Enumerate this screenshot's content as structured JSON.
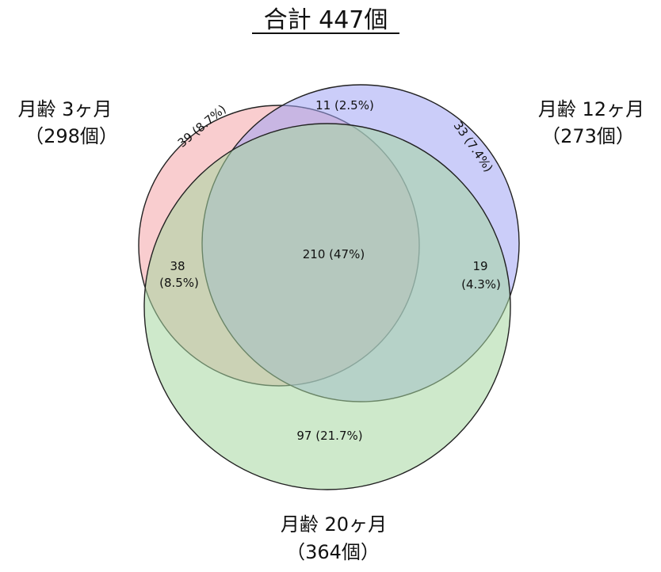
{
  "title": "合計 447個",
  "colors": {
    "set_a": "#f4a4a8",
    "set_b": "#a0a4f4",
    "set_c": "#a6d7a0",
    "outline": "#222222",
    "text": "#111111"
  },
  "sets": [
    {
      "id": "a",
      "name": "月齢 3ヶ月",
      "count_label": "（298個）",
      "total": 298
    },
    {
      "id": "b",
      "name": "月齢 12ヶ月",
      "count_label": "（273個）",
      "total": 273
    },
    {
      "id": "c",
      "name": "月齢 20ヶ月",
      "count_label": "（364個）",
      "total": 364
    }
  ],
  "regions": [
    {
      "id": "a_only",
      "sets": [
        "a"
      ],
      "label": "39 (8.7%)"
    },
    {
      "id": "b_only",
      "sets": [
        "b"
      ],
      "label": "33 (7.4%)"
    },
    {
      "id": "c_only",
      "sets": [
        "c"
      ],
      "label": "97 (21.7%)"
    },
    {
      "id": "ab_only",
      "sets": [
        "a",
        "b"
      ],
      "label": "11 (2.5%)"
    },
    {
      "id": "ac_only",
      "sets": [
        "a",
        "c"
      ],
      "label_line1": "38",
      "label_line2": "(8.5%)"
    },
    {
      "id": "bc_only",
      "sets": [
        "b",
        "c"
      ],
      "label_line1": "19",
      "label_line2": "(4.3%)"
    },
    {
      "id": "abc",
      "sets": [
        "a",
        "b",
        "c"
      ],
      "label": "210 (47%)"
    }
  ]
}
